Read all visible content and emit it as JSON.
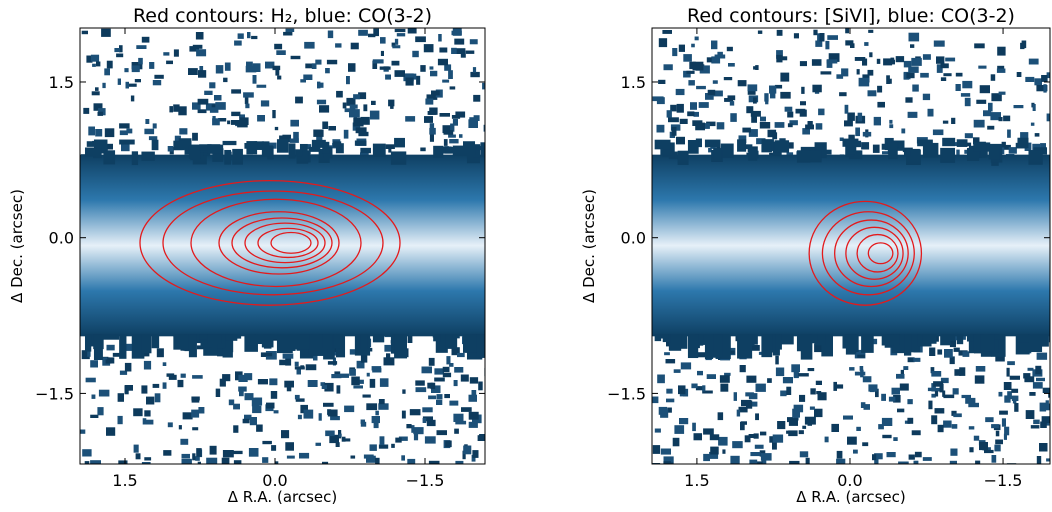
{
  "chart_data": [
    {
      "type": "image",
      "title": "Red contours: H₂, blue: CO(3-2)",
      "xlabel": "Δ R.A. (arcsec)",
      "ylabel": "Δ Dec. (arcsec)",
      "xlim": [
        1.95,
        -2.1
      ],
      "ylim": [
        -2.18,
        2.02
      ],
      "xticks": [
        1.5,
        {
          "value": 0,
          "label": "0.0"
        },
        {
          "value": -1.5,
          "label": "−1.5"
        }
      ],
      "yticks": [
        {
          "value": -1.5,
          "label": "−1.5"
        },
        {
          "value": 0,
          "label": "0.0"
        },
        1.5
      ],
      "contour_color": "#e31a1c"
    },
    {
      "type": "image",
      "title": "Red contours: [SiVI], blue: CO(3-2)",
      "xlabel": "Δ R.A. (arcsec)",
      "ylabel": "Δ Dec. (arcsec)",
      "xlim": [
        1.94,
        -1.96
      ],
      "ylim": [
        -2.18,
        2.02
      ],
      "xticks": [
        1.5,
        {
          "value": 0,
          "label": "0.0"
        },
        {
          "value": -1.5,
          "label": "−1.5"
        }
      ],
      "yticks": [
        {
          "value": -1.5,
          "label": "−1.5"
        },
        {
          "value": 0,
          "label": "0.0"
        },
        1.5
      ],
      "contour_color": "#e31a1c"
    }
  ]
}
